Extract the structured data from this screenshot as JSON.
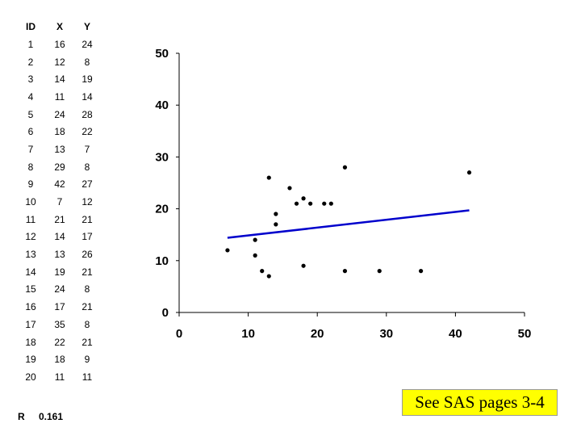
{
  "table": {
    "headers": {
      "id": "ID",
      "x": "X",
      "y": "Y"
    },
    "rows": [
      {
        "id": "1",
        "x": "16",
        "y": "24"
      },
      {
        "id": "2",
        "x": "12",
        "y": "8"
      },
      {
        "id": "3",
        "x": "14",
        "y": "19"
      },
      {
        "id": "4",
        "x": "11",
        "y": "14"
      },
      {
        "id": "5",
        "x": "24",
        "y": "28"
      },
      {
        "id": "6",
        "x": "18",
        "y": "22"
      },
      {
        "id": "7",
        "x": "13",
        "y": "7"
      },
      {
        "id": "8",
        "x": "29",
        "y": "8"
      },
      {
        "id": "9",
        "x": "42",
        "y": "27"
      },
      {
        "id": "10",
        "x": "7",
        "y": "12"
      },
      {
        "id": "11",
        "x": "21",
        "y": "21"
      },
      {
        "id": "12",
        "x": "14",
        "y": "17"
      },
      {
        "id": "13",
        "x": "13",
        "y": "26"
      },
      {
        "id": "14",
        "x": "19",
        "y": "21"
      },
      {
        "id": "15",
        "x": "24",
        "y": "8"
      },
      {
        "id": "16",
        "x": "17",
        "y": "21"
      },
      {
        "id": "17",
        "x": "35",
        "y": "8"
      },
      {
        "id": "18",
        "x": "22",
        "y": "21"
      },
      {
        "id": "19",
        "x": "18",
        "y": "9"
      },
      {
        "id": "20",
        "x": "11",
        "y": "11"
      }
    ]
  },
  "correlation": {
    "label": "R",
    "value": "0.161"
  },
  "note": "See SAS pages 3-4",
  "chart_data": {
    "type": "scatter",
    "x": [
      16,
      12,
      14,
      11,
      24,
      18,
      13,
      29,
      42,
      7,
      21,
      14,
      13,
      19,
      24,
      17,
      35,
      22,
      18,
      11
    ],
    "y": [
      24,
      8,
      19,
      14,
      28,
      22,
      7,
      8,
      27,
      12,
      21,
      17,
      26,
      21,
      8,
      21,
      8,
      21,
      9,
      11
    ],
    "xlim": [
      0,
      50
    ],
    "ylim": [
      0,
      50
    ],
    "xticks": [
      "0",
      "10",
      "20",
      "30",
      "40",
      "50"
    ],
    "yticks": [
      "0",
      "10",
      "20",
      "30",
      "40",
      "50"
    ],
    "trendline": {
      "x": [
        7,
        42
      ],
      "y": [
        14.4,
        19.7
      ],
      "color": "#0000cc"
    },
    "point_color": "#000000",
    "grid": false,
    "legend": "none"
  }
}
